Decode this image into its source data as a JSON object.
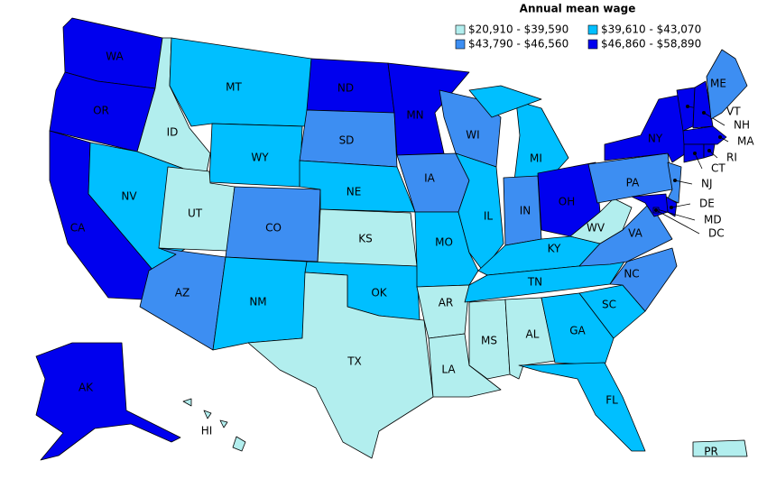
{
  "legend": {
    "title": "Annual mean wage",
    "items": [
      {
        "label": "$20,910 - $39,590",
        "color": "#b2eeee"
      },
      {
        "label": "$39,610 - $43,070",
        "color": "#00bfff"
      },
      {
        "label": "$43,790 - $46,560",
        "color": "#3d8ef2"
      },
      {
        "label": "$46,860 - $58,890",
        "color": "#0000ee"
      }
    ]
  },
  "states": [
    {
      "abbr": "WA",
      "color": "#0000ee"
    },
    {
      "abbr": "OR",
      "color": "#0000ee"
    },
    {
      "abbr": "CA",
      "color": "#0000ee"
    },
    {
      "abbr": "ID",
      "color": "#b2eeee"
    },
    {
      "abbr": "MT",
      "color": "#00bfff"
    },
    {
      "abbr": "WY",
      "color": "#00bfff"
    },
    {
      "abbr": "NV",
      "color": "#00bfff"
    },
    {
      "abbr": "UT",
      "color": "#b2eeee"
    },
    {
      "abbr": "CO",
      "color": "#3d8ef2"
    },
    {
      "abbr": "AZ",
      "color": "#3d8ef2"
    },
    {
      "abbr": "NM",
      "color": "#00bfff"
    },
    {
      "abbr": "ND",
      "color": "#0000ee"
    },
    {
      "abbr": "SD",
      "color": "#3d8ef2"
    },
    {
      "abbr": "NE",
      "color": "#00bfff"
    },
    {
      "abbr": "KS",
      "color": "#b2eeee"
    },
    {
      "abbr": "OK",
      "color": "#00bfff"
    },
    {
      "abbr": "TX",
      "color": "#b2eeee"
    },
    {
      "abbr": "MN",
      "color": "#0000ee"
    },
    {
      "abbr": "IA",
      "color": "#3d8ef2"
    },
    {
      "abbr": "MO",
      "color": "#00bfff"
    },
    {
      "abbr": "AR",
      "color": "#b2eeee"
    },
    {
      "abbr": "LA",
      "color": "#b2eeee"
    },
    {
      "abbr": "WI",
      "color": "#3d8ef2"
    },
    {
      "abbr": "IL",
      "color": "#00bfff"
    },
    {
      "abbr": "MI",
      "color": "#00bfff"
    },
    {
      "abbr": "IN",
      "color": "#3d8ef2"
    },
    {
      "abbr": "OH",
      "color": "#0000ee"
    },
    {
      "abbr": "KY",
      "color": "#00bfff"
    },
    {
      "abbr": "TN",
      "color": "#00bfff"
    },
    {
      "abbr": "MS",
      "color": "#b2eeee"
    },
    {
      "abbr": "AL",
      "color": "#b2eeee"
    },
    {
      "abbr": "GA",
      "color": "#00bfff"
    },
    {
      "abbr": "FL",
      "color": "#00bfff"
    },
    {
      "abbr": "SC",
      "color": "#00bfff"
    },
    {
      "abbr": "NC",
      "color": "#3d8ef2"
    },
    {
      "abbr": "VA",
      "color": "#3d8ef2"
    },
    {
      "abbr": "WV",
      "color": "#b2eeee"
    },
    {
      "abbr": "PA",
      "color": "#3d8ef2"
    },
    {
      "abbr": "NY",
      "color": "#0000ee"
    },
    {
      "abbr": "NJ",
      "color": "#3d8ef2"
    },
    {
      "abbr": "DE",
      "color": "#0000ee"
    },
    {
      "abbr": "MD",
      "color": "#0000ee"
    },
    {
      "abbr": "DC",
      "color": "#0000ee"
    },
    {
      "abbr": "VT",
      "color": "#0000ee"
    },
    {
      "abbr": "NH",
      "color": "#0000ee"
    },
    {
      "abbr": "ME",
      "color": "#3d8ef2"
    },
    {
      "abbr": "MA",
      "color": "#0000ee"
    },
    {
      "abbr": "CT",
      "color": "#0000ee"
    },
    {
      "abbr": "RI",
      "color": "#0000ee"
    },
    {
      "abbr": "AK",
      "color": "#0000ee"
    },
    {
      "abbr": "HI",
      "color": "#b2eeee"
    },
    {
      "abbr": "PR",
      "color": "#b2eeee"
    }
  ]
}
